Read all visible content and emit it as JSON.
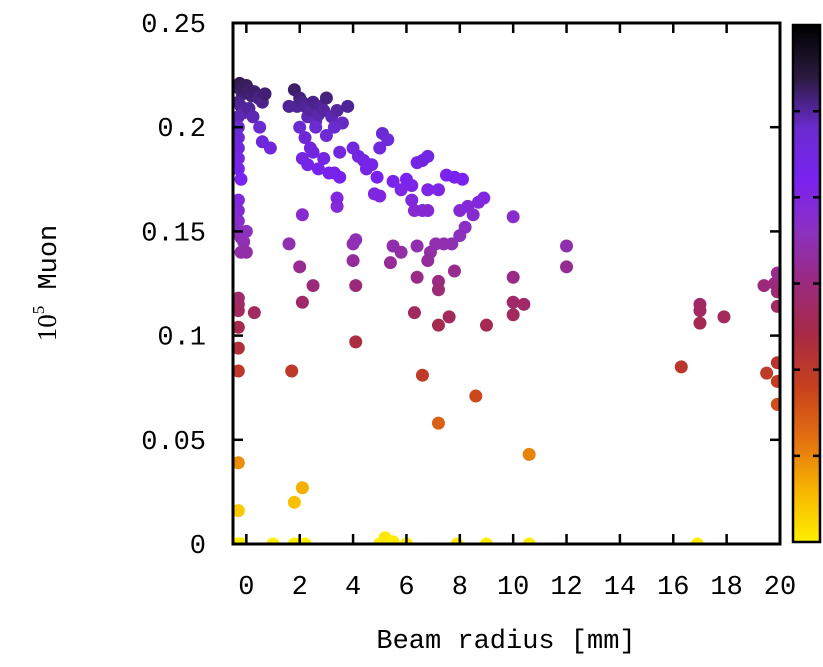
{
  "chart_data": {
    "type": "scatter",
    "xlabel": "Beam radius [mm]",
    "ylabel": {
      "base": "10",
      "exp": "5",
      "text": " Muon"
    },
    "xlim": [
      -0.5,
      20
    ],
    "ylim": [
      0,
      0.25
    ],
    "xticks": [
      "0",
      "2",
      "4",
      "6",
      "8",
      "10",
      "12",
      "14",
      "16",
      "18",
      "20"
    ],
    "xtick_values": [
      0,
      2,
      4,
      6,
      8,
      10,
      12,
      14,
      16,
      18,
      20
    ],
    "yticks": [
      "0",
      "0.05",
      "0.1",
      "0.15",
      "0.2",
      "0.25"
    ],
    "ytick_values": [
      0,
      0.05,
      0.1,
      0.15,
      0.2,
      0.25
    ],
    "grid": false,
    "colorbar": {
      "position": "right",
      "gradient": [
        "#ffee00",
        "#f7b500",
        "#e26f10",
        "#c7401e",
        "#a82a45",
        "#9b2a7e",
        "#8c30c0",
        "#7a22f0",
        "#6a2bd0",
        "#2a1a3e",
        "#000000"
      ],
      "tick_count": 5
    },
    "marker_color_scale": "y-value",
    "points": [
      [
        -0.3,
        0.219
      ],
      [
        -0.25,
        0.221
      ],
      [
        -0.2,
        0.218
      ],
      [
        -0.15,
        0.216
      ],
      [
        -0.1,
        0.219
      ],
      [
        0,
        0.22
      ],
      [
        0.1,
        0.218
      ],
      [
        0.2,
        0.215
      ],
      [
        0.3,
        0.217
      ],
      [
        0.45,
        0.214
      ],
      [
        0.6,
        0.212
      ],
      [
        0.7,
        0.216
      ],
      [
        -0.3,
        0.212
      ],
      [
        -0.2,
        0.21
      ],
      [
        -0.1,
        0.207
      ],
      [
        0.1,
        0.209
      ],
      [
        0.25,
        0.205
      ],
      [
        -0.3,
        0.205
      ],
      [
        -0.3,
        0.2
      ],
      [
        -0.3,
        0.195
      ],
      [
        -0.3,
        0.19
      ],
      [
        -0.3,
        0.185
      ],
      [
        -0.3,
        0.18
      ],
      [
        -0.2,
        0.175
      ],
      [
        0.5,
        0.2
      ],
      [
        0.6,
        0.193
      ],
      [
        0.9,
        0.19
      ],
      [
        1.6,
        0.21
      ],
      [
        1.8,
        0.218
      ],
      [
        1.9,
        0.21
      ],
      [
        2.0,
        0.214
      ],
      [
        2.1,
        0.212
      ],
      [
        2.2,
        0.21
      ],
      [
        2.3,
        0.205
      ],
      [
        2.4,
        0.208
      ],
      [
        2.5,
        0.212
      ],
      [
        2.6,
        0.203
      ],
      [
        2.7,
        0.206
      ],
      [
        2.8,
        0.21
      ],
      [
        2.9,
        0.208
      ],
      [
        3.0,
        0.214
      ],
      [
        3.2,
        0.205
      ],
      [
        3.4,
        0.208
      ],
      [
        3.6,
        0.202
      ],
      [
        3.8,
        0.21
      ],
      [
        2.0,
        0.2
      ],
      [
        2.2,
        0.195
      ],
      [
        2.4,
        0.19
      ],
      [
        2.6,
        0.2
      ],
      [
        3.0,
        0.196
      ],
      [
        3.3,
        0.2
      ],
      [
        2.1,
        0.185
      ],
      [
        2.3,
        0.182
      ],
      [
        2.5,
        0.188
      ],
      [
        2.7,
        0.18
      ],
      [
        2.9,
        0.185
      ],
      [
        3.1,
        0.178
      ],
      [
        3.3,
        0.178
      ],
      [
        3.5,
        0.176
      ],
      [
        3.5,
        0.188
      ],
      [
        4.0,
        0.19
      ],
      [
        4.2,
        0.186
      ],
      [
        4.4,
        0.184
      ],
      [
        4.5,
        0.18
      ],
      [
        4.7,
        0.182
      ],
      [
        4.9,
        0.176
      ],
      [
        5.0,
        0.19
      ],
      [
        5.1,
        0.197
      ],
      [
        5.3,
        0.194
      ],
      [
        5.5,
        0.174
      ],
      [
        5.8,
        0.17
      ],
      [
        6.0,
        0.175
      ],
      [
        6.2,
        0.172
      ],
      [
        6.4,
        0.183
      ],
      [
        6.6,
        0.184
      ],
      [
        6.8,
        0.17
      ],
      [
        6.8,
        0.186
      ],
      [
        7.2,
        0.17
      ],
      [
        7.5,
        0.177
      ],
      [
        7.8,
        0.176
      ],
      [
        8.0,
        0.16
      ],
      [
        8.1,
        0.175
      ],
      [
        8.3,
        0.162
      ],
      [
        8.5,
        0.158
      ],
      [
        8.7,
        0.164
      ],
      [
        8.9,
        0.166
      ],
      [
        10.0,
        0.157
      ],
      [
        4.8,
        0.168
      ],
      [
        5.0,
        0.167
      ],
      [
        3.4,
        0.166
      ],
      [
        3.4,
        0.162
      ],
      [
        6.2,
        0.165
      ],
      [
        6.3,
        0.16
      ],
      [
        6.6,
        0.16
      ],
      [
        6.8,
        0.16
      ],
      [
        -0.3,
        0.165
      ],
      [
        -0.3,
        0.16
      ],
      [
        -0.3,
        0.155
      ],
      [
        -0.3,
        0.15
      ],
      [
        -0.2,
        0.147
      ],
      [
        -0.1,
        0.145
      ],
      [
        0,
        0.15
      ],
      [
        0,
        0.14
      ],
      [
        -0.2,
        0.14
      ],
      [
        1.6,
        0.144
      ],
      [
        2.1,
        0.158
      ],
      [
        4.0,
        0.144
      ],
      [
        4.1,
        0.146
      ],
      [
        5.5,
        0.143
      ],
      [
        5.8,
        0.14
      ],
      [
        6.4,
        0.143
      ],
      [
        6.9,
        0.14
      ],
      [
        7.1,
        0.144
      ],
      [
        7.4,
        0.144
      ],
      [
        7.7,
        0.144
      ],
      [
        8.0,
        0.148
      ],
      [
        8.2,
        0.152
      ],
      [
        12.0,
        0.143
      ],
      [
        12.0,
        0.133
      ],
      [
        2.0,
        0.133
      ],
      [
        4.0,
        0.136
      ],
      [
        5.4,
        0.135
      ],
      [
        6.4,
        0.128
      ],
      [
        6.8,
        0.136
      ],
      [
        7.2,
        0.126
      ],
      [
        7.8,
        0.131
      ],
      [
        10.0,
        0.128
      ],
      [
        -0.3,
        0.118
      ],
      [
        -0.3,
        0.115
      ],
      [
        -0.3,
        0.112
      ],
      [
        0.3,
        0.111
      ],
      [
        2.1,
        0.116
      ],
      [
        2.5,
        0.124
      ],
      [
        4.1,
        0.124
      ],
      [
        6.3,
        0.111
      ],
      [
        7.2,
        0.122
      ],
      [
        10.0,
        0.116
      ],
      [
        10.4,
        0.115
      ],
      [
        10.0,
        0.11
      ],
      [
        7.6,
        0.109
      ],
      [
        7.2,
        0.105
      ],
      [
        9.0,
        0.105
      ],
      [
        -0.3,
        0.104
      ],
      [
        -0.3,
        0.094
      ],
      [
        -0.3,
        0.083
      ],
      [
        4.1,
        0.097
      ],
      [
        1.7,
        0.083
      ],
      [
        6.6,
        0.081
      ],
      [
        7.2,
        0.058
      ],
      [
        8.6,
        0.071
      ],
      [
        10.6,
        0.043
      ],
      [
        16.3,
        0.085
      ],
      [
        17.0,
        0.115
      ],
      [
        17.0,
        0.112
      ],
      [
        17.0,
        0.106
      ],
      [
        17.9,
        0.109
      ],
      [
        19.4,
        0.124
      ],
      [
        19.8,
        0.125
      ],
      [
        19.9,
        0.13
      ],
      [
        19.9,
        0.121
      ],
      [
        19.9,
        0.114
      ],
      [
        19.5,
        0.082
      ],
      [
        19.9,
        0.087
      ],
      [
        19.9,
        0.078
      ],
      [
        19.9,
        0.067
      ],
      [
        -0.3,
        0.039
      ],
      [
        -0.3,
        0.016
      ],
      [
        1.8,
        0.02
      ],
      [
        2.1,
        0.027
      ],
      [
        -0.3,
        0
      ],
      [
        -0.2,
        0
      ],
      [
        1.0,
        0
      ],
      [
        1.8,
        0
      ],
      [
        2.0,
        0
      ],
      [
        2.2,
        0
      ],
      [
        5.0,
        0
      ],
      [
        5.2,
        0.003
      ],
      [
        5.5,
        0.001
      ],
      [
        6.0,
        0
      ],
      [
        7.9,
        0
      ],
      [
        9.0,
        0
      ],
      [
        10.6,
        0
      ],
      [
        16.9,
        0
      ]
    ]
  }
}
